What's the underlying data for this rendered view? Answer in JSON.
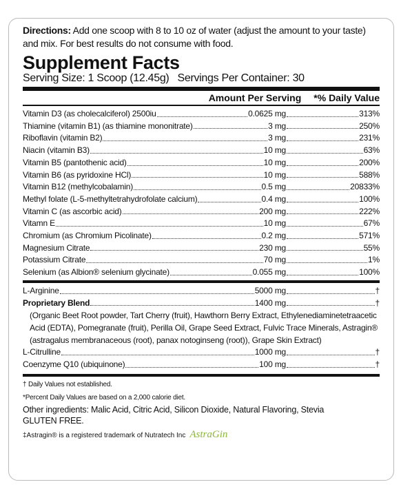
{
  "directions": {
    "label": "Directions:",
    "text": "Add one scoop with 8 to 10 oz of water (adjust the amount to your taste) and mix. For best results do not consume with food."
  },
  "title": "Supplement Facts",
  "serving_size": "Serving Size: 1 Scoop (12.45g)",
  "servings_per_container": "Servings Per Container: 30",
  "header": {
    "amount": "Amount Per Serving",
    "daily_value": "*% Daily Value"
  },
  "rows": [
    [
      "Vitamin D3 (as cholecalciferol) 2500iu",
      "0.0625 mg",
      "313%"
    ],
    [
      "Thiamine (vitamin B1) (as thiamine mononitrate)",
      "3 mg",
      "250%"
    ],
    [
      "Riboflavin (vitamin B2)",
      "3 mg",
      "231%"
    ],
    [
      "Niacin (vitamin B3)",
      "10 mg",
      "63%"
    ],
    [
      "Vitamin B5 (pantothenic acid)",
      "10 mg",
      "200%"
    ],
    [
      "Vitamin B6 (as pyridoxine HCl)",
      "10 mg",
      "588%"
    ],
    [
      "Vitamin B12 (methylcobalamin)",
      "0.5 mg",
      "20833%"
    ],
    [
      "Methyl folate (L-5-methyltetrahydrofolate calcium)",
      "0.4 mg",
      "100%"
    ],
    [
      "Vitamin C (as ascorbic acid)",
      "200 mg",
      "222%"
    ],
    [
      "Vitamn E",
      "10 mg",
      "67%"
    ],
    [
      "Chromium (as Chromium Picolinate)",
      "0.2 mg",
      "571%"
    ],
    [
      "Magnesium Citrate",
      "230 mg",
      "55%"
    ],
    [
      "Potassium Citrate",
      "70 mg",
      "1%"
    ],
    [
      "Selenium (as Albion® selenium glycinate)",
      "0.055 mg",
      "100%"
    ]
  ],
  "other_rows": [
    [
      "L-Arginine",
      "5000 mg",
      "†"
    ],
    [
      "Proprietary Blend",
      "1400 mg",
      "†"
    ]
  ],
  "blend_detail": "(Organic Beet Root powder, Tart Cherry (fruit), Hawthorn Berry Extract, Ethylenediaminetetraacetic Acid (EDTA), Pomegranate (fruit), Perilla Oil, Grape Seed Extract, Fulvic Trace Minerals, Astragin® (astragalus membranaceous (root), panax notoginseng (root)), Grape Skin Extract)",
  "final_rows": [
    [
      "L-Citrulline",
      "1000 mg",
      "†"
    ],
    [
      "Coenzyme Q10 (ubiquinone)",
      "100 mg",
      "†"
    ]
  ],
  "footnotes": [
    "† Daily Values not established.",
    "*Percent Daily Values are based on a 2,000 calorie diet."
  ],
  "other_ingredients": "Other ingredients:  Malic Acid, Citric Acid, Silicon Dioxide, Natural Flavoring, Stevia",
  "gluten_free": "GLUTEN FREE.",
  "trademark": "‡Astragin® is a registered trademark of Nutratech Inc",
  "logo": "AstraGin"
}
